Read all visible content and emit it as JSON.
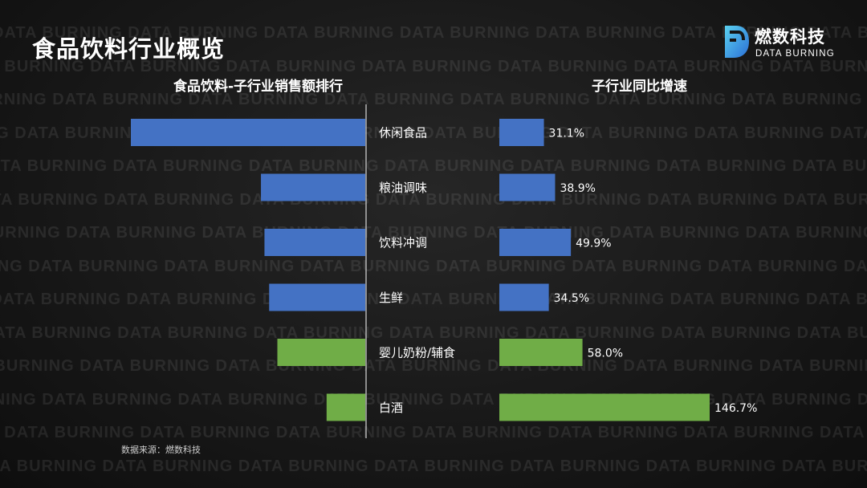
{
  "title": "食品饮料行业概览",
  "logo": {
    "name_cn": "燃数科技",
    "name_en": "DATA BURNING"
  },
  "watermark_text": "DATA BURNING",
  "colors": {
    "blue": "#4472C4",
    "green": "#70AD47",
    "axis": "#d9d9d9",
    "background": "#1a1a1a"
  },
  "source": "数据来源：燃数科技",
  "chart_data": [
    {
      "type": "bar",
      "orientation": "horizontal",
      "direction": "leftward",
      "title": "食品饮料-子行业销售额排行",
      "categories": [
        "休闲食品",
        "粮油调味",
        "饮料冲调",
        "生鲜",
        "婴儿奶粉/辅食",
        "白酒"
      ],
      "values": [
        100,
        44.5,
        43,
        41,
        37.5,
        16.5
      ],
      "value_axis_labels": "none",
      "bar_colors": [
        "#4472C4",
        "#4472C4",
        "#4472C4",
        "#4472C4",
        "#70AD47",
        "#70AD47"
      ]
    },
    {
      "type": "bar",
      "orientation": "horizontal",
      "title": "子行业同比增速",
      "categories": [
        "休闲食品",
        "粮油调味",
        "饮料冲调",
        "生鲜",
        "婴儿奶粉/辅食",
        "白酒"
      ],
      "values": [
        31.1,
        38.9,
        49.9,
        34.5,
        58.0,
        146.7
      ],
      "data_labels": [
        "31.1%",
        "38.9%",
        "49.9%",
        "34.5%",
        "58.0%",
        "146.7%"
      ],
      "bar_colors": [
        "#4472C4",
        "#4472C4",
        "#4472C4",
        "#4472C4",
        "#70AD47",
        "#70AD47"
      ]
    }
  ]
}
